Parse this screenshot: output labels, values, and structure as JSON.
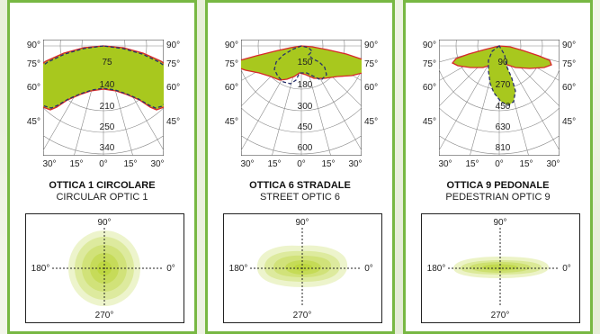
{
  "optics": [
    {
      "title": "OTTICA 1 CIRCOLARE",
      "subtitle": "CIRCULAR OPTIC 1",
      "radial_labels": [
        "75",
        "140",
        "210",
        "250",
        "340"
      ],
      "footprint_shape": "circular"
    },
    {
      "title": "OTTICA 6 STRADALE",
      "subtitle": "STREET OPTIC 6",
      "radial_labels": [
        "150",
        "180",
        "300",
        "450",
        "600"
      ],
      "footprint_shape": "street"
    },
    {
      "title": "OTTICA 9 PEDONALE",
      "subtitle": "PEDESTRIAN OPTIC 9",
      "radial_labels": [
        "90",
        "270",
        "450",
        "630",
        "810"
      ],
      "footprint_shape": "pedestrian"
    }
  ],
  "angle_labels": {
    "left": [
      "90°",
      "75°",
      "60°",
      "45°"
    ],
    "right": [
      "90°",
      "75°",
      "60°",
      "45°"
    ],
    "bottom": [
      "30°",
      "15°",
      "0°",
      "15°",
      "30°"
    ]
  },
  "footprint_labels": {
    "top": "90°",
    "left": "180°",
    "right": "0°",
    "bottom": "270°"
  },
  "colors": {
    "border": "#78b843",
    "fill": "#a8c81e",
    "outline_red": "#d8282a",
    "outline_blue": "#28306a",
    "footprint": "#b9d334"
  }
}
